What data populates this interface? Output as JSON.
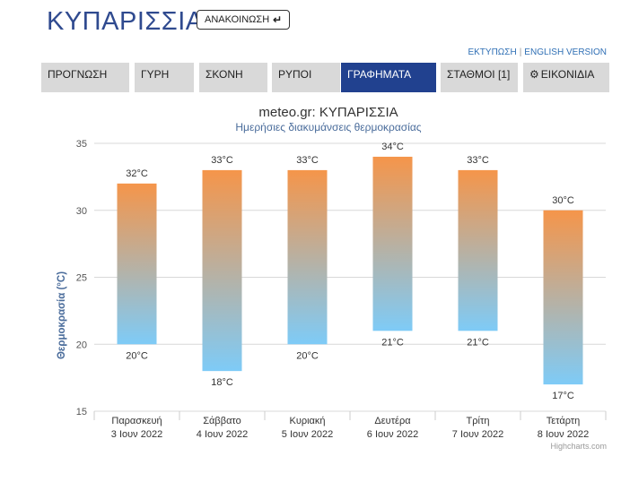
{
  "header": {
    "title": "ΚΥΠΑΡΙΣΣΙΑ",
    "announce_label": "ΑΝΑΚΟΙΝΩΣΗ",
    "announce_icon": "arrow-down-return-icon",
    "print_link": "ΕΚΤΥΠΩΣΗ",
    "link_separator": "|",
    "english_link": "ENGLISH VERSION"
  },
  "tabs": [
    {
      "label": "ΠΡΟΓΝΩΣΗ",
      "active": false
    },
    {
      "label": "ΓΥΡΗ",
      "active": false
    },
    {
      "label": "ΣΚΟΝΗ",
      "active": false
    },
    {
      "label": "ΡΥΠΟΙ",
      "active": false
    },
    {
      "label": "ΓΡΑΦΗΜΑΤΑ",
      "active": true
    },
    {
      "label": "ΣΤΑΘΜΟΙ [1]",
      "active": false
    },
    {
      "label": "ΕΙΚΟΝΙΔΙΑ",
      "active": false,
      "icon": "gear-icon"
    }
  ],
  "colors": {
    "title": "#2f4a8f",
    "tab_active": "#21418f",
    "tab_inactive": "#d9d9d9",
    "bar_top": "#f5954a",
    "bar_bottom": "#7ecbf7",
    "axis_title": "#4a6c9b",
    "subtitle": "#4a6c9b"
  },
  "chart_data": {
    "type": "columnrange",
    "title": "meteo.gr: ΚΥΠΑΡΙΣΣΙΑ",
    "subtitle": "Ημερήσιες διακυμάνσεις θερμοκρασίας",
    "ylabel": "Θερμοκρασία (°C)",
    "ylim": [
      15,
      35
    ],
    "yticks": [
      15,
      20,
      25,
      30,
      35
    ],
    "grid": true,
    "credits": "Highcharts.com",
    "unit": "°C",
    "categories": [
      {
        "day": "Παρασκευή",
        "date": "3 Ιουν 2022"
      },
      {
        "day": "Σάββατο",
        "date": "4 Ιουν 2022"
      },
      {
        "day": "Κυριακή",
        "date": "5 Ιουν 2022"
      },
      {
        "day": "Δευτέρα",
        "date": "6 Ιουν 2022"
      },
      {
        "day": "Τρίτη",
        "date": "7 Ιουν 2022"
      },
      {
        "day": "Τετάρτη",
        "date": "8 Ιουν 2022"
      }
    ],
    "low": [
      20,
      18,
      20,
      21,
      21,
      17
    ],
    "high": [
      32,
      33,
      33,
      34,
      33,
      30
    ]
  }
}
